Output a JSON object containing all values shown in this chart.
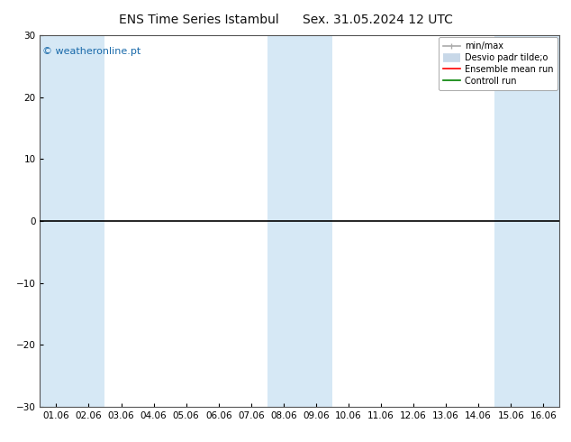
{
  "title_left": "ENS Time Series Istambul",
  "title_right": "Sex. 31.05.2024 12 UTC",
  "xlabel_ticks": [
    "01.06",
    "02.06",
    "03.06",
    "04.06",
    "05.06",
    "06.06",
    "07.06",
    "08.06",
    "09.06",
    "10.06",
    "11.06",
    "12.06",
    "13.06",
    "14.06",
    "15.06",
    "16.06"
  ],
  "ylim": [
    -30,
    30
  ],
  "yticks": [
    -30,
    -20,
    -10,
    0,
    10,
    20,
    30
  ],
  "background_color": "#ffffff",
  "plot_bg_color": "#ffffff",
  "shaded_indices": [
    0,
    1,
    7,
    8,
    14,
    15
  ],
  "shaded_color": "#d6e8f5",
  "hline_y": 0,
  "hline_color": "#000000",
  "watermark": "© weatheronline.pt",
  "watermark_color": "#1a6aaa",
  "legend_labels": [
    "min/max",
    "Desvio padr tilde;o",
    "Ensemble mean run",
    "Controll run"
  ],
  "legend_colors": [
    "#aaaaaa",
    "#c8d8e8",
    "#ff0000",
    "#008000"
  ],
  "title_fontsize": 10,
  "tick_fontsize": 7.5,
  "watermark_fontsize": 8,
  "legend_fontsize": 7
}
